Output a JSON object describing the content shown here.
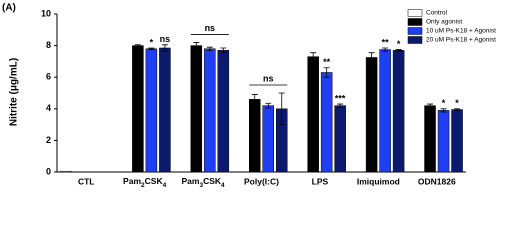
{
  "chart_data": {
    "type": "bar",
    "panel_label": "(A)",
    "y_label": "Nitrite (μg/mL)",
    "categories": [
      "CTL",
      "Pam2CSK4",
      "Pam3CSK4",
      "Poly(I:C)",
      "LPS",
      "Imiquimod",
      "ODN1826"
    ],
    "series": [
      {
        "name": "Control",
        "color": "#ffffff",
        "values": [
          0.05,
          null,
          null,
          null,
          null,
          null,
          null
        ],
        "errors": [
          0,
          null,
          null,
          null,
          null,
          null,
          null
        ],
        "significance": [
          null,
          null,
          null,
          null,
          null,
          null,
          null
        ]
      },
      {
        "name": "Only agonist",
        "color": "#000000",
        "values": [
          null,
          8.0,
          8.0,
          4.6,
          7.3,
          7.25,
          4.2
        ],
        "errors": [
          null,
          0.05,
          0.2,
          0.3,
          0.25,
          0.3,
          0.1
        ],
        "significance": [
          null,
          null,
          null,
          null,
          null,
          null,
          null
        ]
      },
      {
        "name": "10 uM Ps-K18 + Agonist",
        "color": "#1f3ff5",
        "values": [
          null,
          7.8,
          7.8,
          4.2,
          6.3,
          7.75,
          3.9
        ],
        "errors": [
          null,
          0.05,
          0.1,
          0.15,
          0.3,
          0.1,
          0.1
        ],
        "significance": [
          null,
          "*",
          null,
          null,
          "**",
          "**",
          "*"
        ]
      },
      {
        "name": "20 uM Ps-K18 + Agonist",
        "color": "#0c1a6e",
        "values": [
          null,
          7.85,
          7.7,
          4.0,
          4.2,
          7.7,
          3.95
        ],
        "errors": [
          null,
          0.2,
          0.15,
          1.0,
          0.1,
          0.05,
          0.05
        ],
        "significance": [
          null,
          "ns",
          null,
          null,
          "***",
          "*",
          "*"
        ]
      }
    ],
    "brackets": [
      {
        "category": "Pam3CSK4",
        "label": "ns"
      },
      {
        "category": "Poly(I:C)",
        "label": "ns"
      }
    ],
    "ylim": [
      0,
      10
    ],
    "yticks": [
      0,
      2,
      4,
      6,
      8,
      10
    ],
    "legend": "top-right"
  }
}
